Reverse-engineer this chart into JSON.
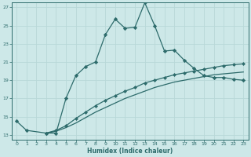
{
  "xlabel": "Humidex (Indice chaleur)",
  "bg_color": "#cde8e8",
  "line_color": "#2d6b6b",
  "grid_color": "#b8d8d8",
  "xlim": [
    -0.5,
    23.5
  ],
  "ylim": [
    12.5,
    27.5
  ],
  "xticks": [
    0,
    1,
    2,
    3,
    4,
    5,
    6,
    7,
    8,
    9,
    10,
    11,
    12,
    13,
    14,
    15,
    16,
    17,
    18,
    19,
    20,
    21,
    22,
    23
  ],
  "yticks": [
    13,
    15,
    17,
    19,
    21,
    23,
    25,
    27
  ],
  "line1_x": [
    0,
    1,
    3,
    4,
    5,
    6,
    7,
    8,
    9,
    10,
    11,
    12,
    13,
    14,
    15,
    16,
    17,
    18,
    19,
    20,
    21,
    22,
    23
  ],
  "line1_y": [
    14.5,
    13.5,
    13.2,
    13.2,
    17.0,
    19.5,
    20.5,
    21.0,
    24.0,
    25.7,
    24.7,
    24.8,
    27.5,
    25.0,
    22.2,
    22.3,
    21.2,
    20.3,
    19.5,
    19.3,
    19.3,
    19.1,
    19.0
  ],
  "line2_x": [
    3,
    4,
    5,
    6,
    7,
    8,
    9,
    10,
    11,
    12,
    13,
    14,
    15,
    16,
    17,
    18,
    19,
    20,
    21,
    22,
    23
  ],
  "line2_y": [
    13.2,
    13.5,
    14.0,
    14.8,
    15.5,
    16.2,
    16.8,
    17.3,
    17.8,
    18.2,
    18.7,
    19.0,
    19.3,
    19.6,
    19.8,
    20.0,
    20.2,
    20.4,
    20.6,
    20.7,
    20.8
  ],
  "line3_x": [
    3,
    4,
    5,
    6,
    7,
    8,
    9,
    10,
    11,
    12,
    13,
    14,
    15,
    16,
    17,
    18,
    19,
    20,
    21,
    22,
    23
  ],
  "line3_y": [
    13.2,
    13.4,
    13.8,
    14.3,
    14.9,
    15.5,
    16.0,
    16.5,
    17.0,
    17.4,
    17.8,
    18.2,
    18.5,
    18.8,
    19.0,
    19.2,
    19.4,
    19.6,
    19.7,
    19.8,
    19.9
  ]
}
